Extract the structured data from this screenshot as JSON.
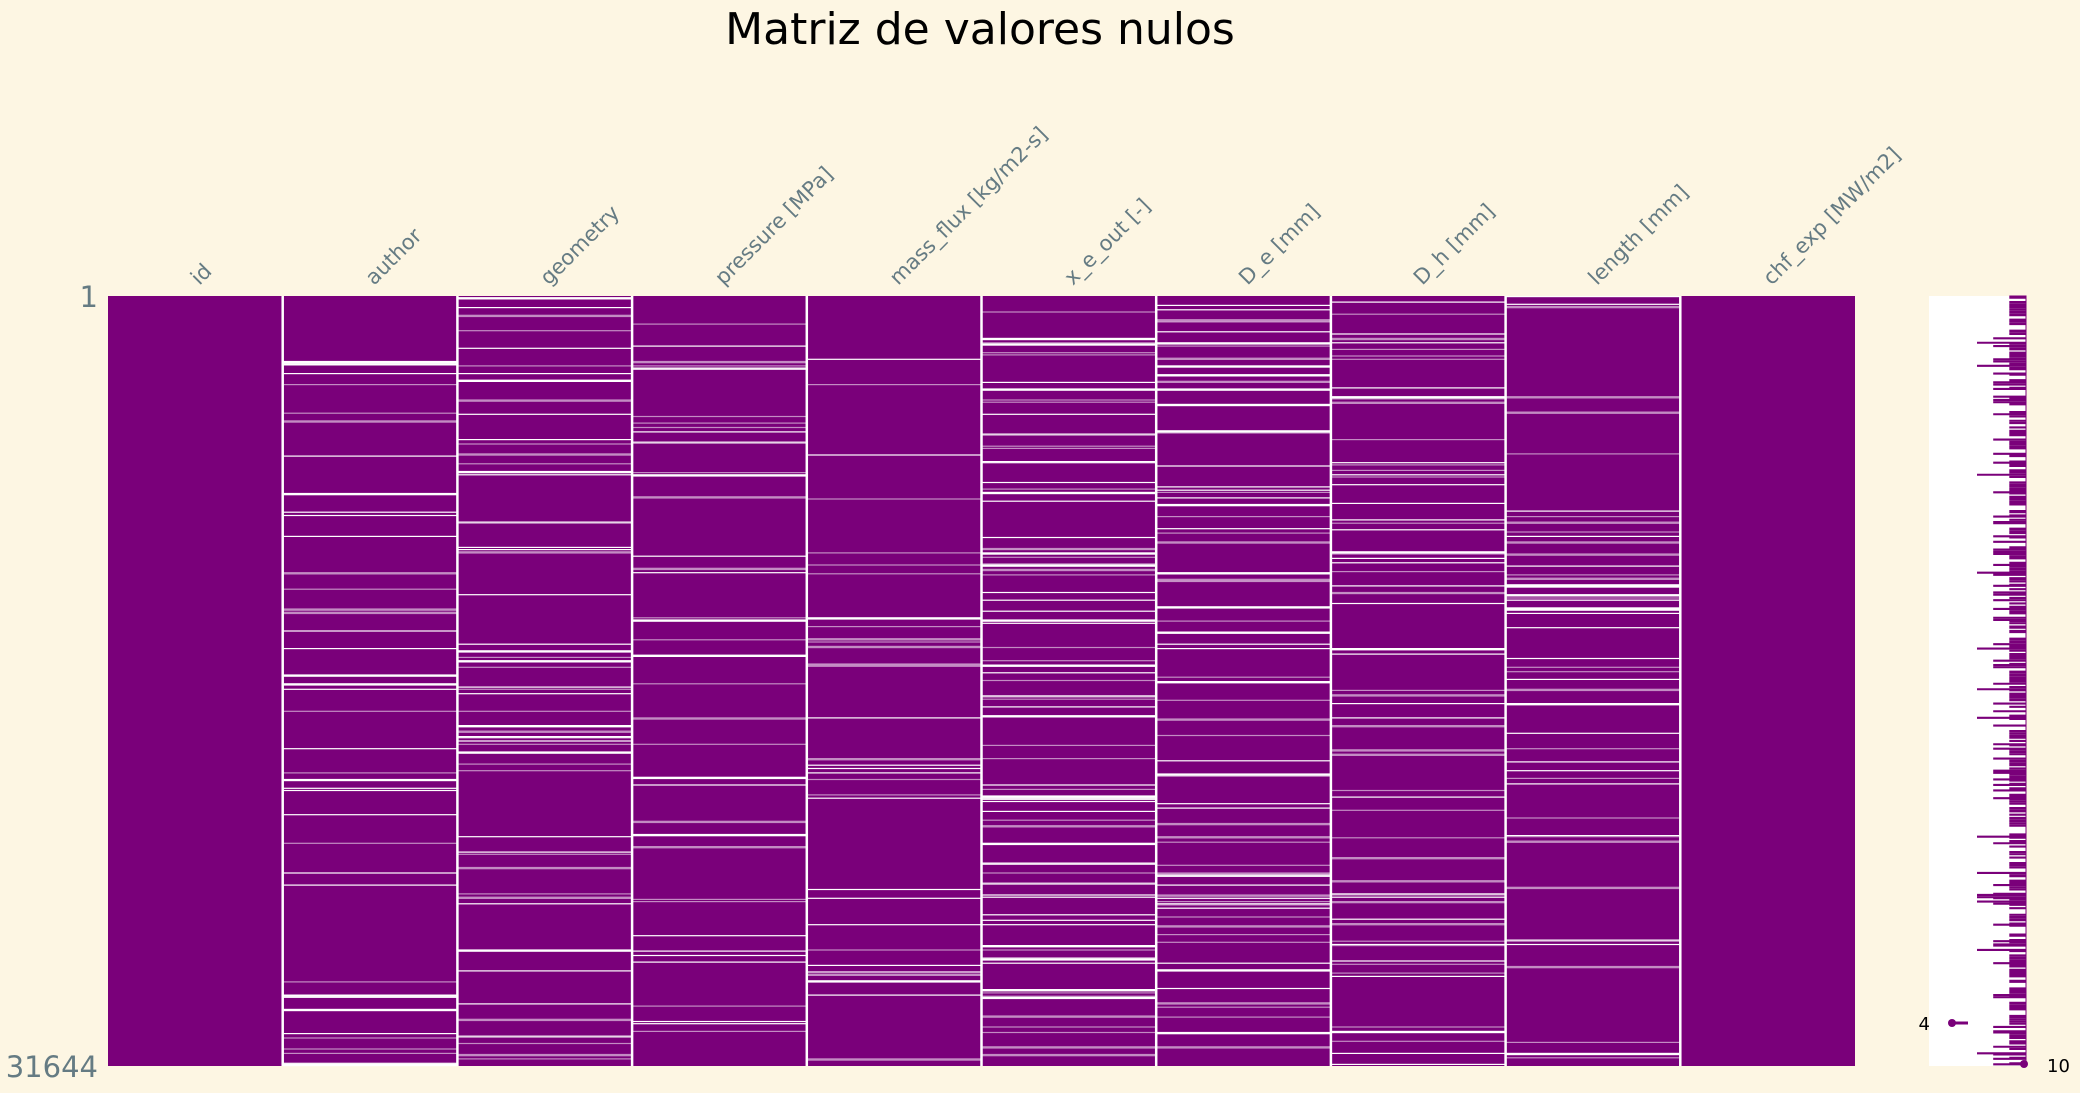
{
  "chart_data": {
    "type": "heatmap",
    "subtype": "missingno-matrix",
    "title": "Matriz de valores nulos",
    "columns": [
      "id",
      "author",
      "geometry",
      "pressure [MPa]",
      "mass_flux [kg/m2-s]",
      "x_e_out [-]",
      "D_e [mm]",
      "D_h [mm]",
      "length [mm]",
      "chf_exp [MW/m2]"
    ],
    "missing_density": [
      0,
      0.05,
      0.07,
      0.05,
      0.05,
      0.12,
      0.08,
      0.07,
      0.07,
      0
    ],
    "row_start_label": "1",
    "row_end_label": "31644",
    "sparkline_min_label": "4",
    "sparkline_max_label": "10",
    "colors": {
      "present": "#7a007a",
      "missing": "#ffffff",
      "background": "#fdf6e3"
    }
  }
}
